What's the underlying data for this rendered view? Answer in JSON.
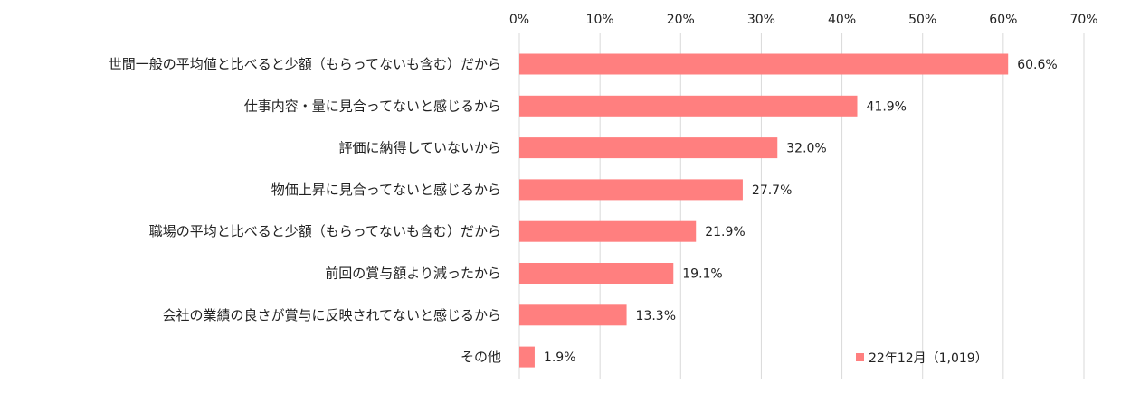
{
  "chart_data": {
    "type": "bar",
    "orientation": "horizontal",
    "categories": [
      "世間一般の平均値と比べると少額（もらってないも含む）だから",
      "仕事内容・量に見合ってないと感じるから",
      "評価に納得していないから",
      "物価上昇に見合ってないと感じるから",
      "職場の平均と比べると少額（もらってないも含む）だから",
      "前回の賞与額より減ったから",
      "会社の業績の良さが賞与に反映されてないと感じるから",
      "その他"
    ],
    "series": [
      {
        "name": "22年12月（1,019）",
        "values": [
          60.6,
          41.9,
          32.0,
          27.7,
          21.9,
          19.1,
          13.3,
          1.9
        ],
        "value_labels": [
          "60.6%",
          "41.9%",
          "32.0%",
          "27.7%",
          "21.9%",
          "19.1%",
          "13.3%",
          "1.9%"
        ],
        "color": "#ff7f7f"
      }
    ],
    "xlim": [
      0,
      70
    ],
    "x_ticks": [
      0,
      10,
      20,
      30,
      40,
      50,
      60,
      70
    ],
    "x_tick_labels": [
      "0%",
      "10%",
      "20%",
      "30%",
      "40%",
      "50%",
      "60%",
      "70%"
    ],
    "axis_position": "top",
    "grid": true,
    "grid_color": "#d9d9d9",
    "legend_position": "bottom-right",
    "title": "",
    "xlabel": "",
    "ylabel": ""
  }
}
